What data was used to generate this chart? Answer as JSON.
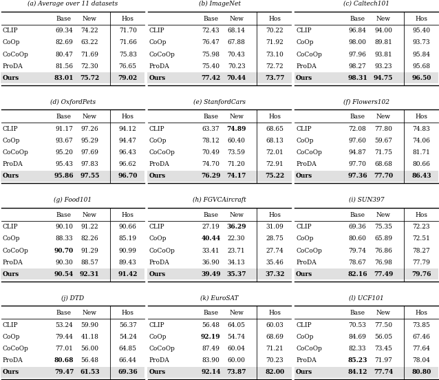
{
  "panels": [
    {
      "label": "(a) Average over 11 datasets",
      "methods": [
        "CLIP",
        "CoOp",
        "CoCoOp",
        "ProDA",
        "Ours"
      ],
      "base": [
        "69.34",
        "82.69",
        "80.47",
        "81.56",
        "83.01"
      ],
      "new": [
        "74.22",
        "63.22",
        "71.69",
        "72.30",
        "75.72"
      ],
      "hos": [
        "71.70",
        "71.66",
        "75.83",
        "76.65",
        "79.02"
      ],
      "bold_base": [
        4
      ],
      "bold_new": [
        4
      ],
      "bold_hos": [
        4
      ]
    },
    {
      "label": "(b) ImageNet",
      "methods": [
        "CLIP",
        "CoOp",
        "CoCoOp",
        "ProDA",
        "Ours"
      ],
      "base": [
        "72.43",
        "76.47",
        "75.98",
        "75.40",
        "77.42"
      ],
      "new": [
        "68.14",
        "67.88",
        "70.43",
        "70.23",
        "70.44"
      ],
      "hos": [
        "70.22",
        "71.92",
        "73.10",
        "72.72",
        "73.77"
      ],
      "bold_base": [
        4
      ],
      "bold_new": [
        4
      ],
      "bold_hos": [
        4
      ]
    },
    {
      "label": "(c) Caltech101",
      "methods": [
        "CLIP",
        "CoOp",
        "CoCoOp",
        "ProDA",
        "Ours"
      ],
      "base": [
        "96.84",
        "98.00",
        "97.96",
        "98.27",
        "98.31"
      ],
      "new": [
        "94.00",
        "89.81",
        "93.81",
        "93.23",
        "94.75"
      ],
      "hos": [
        "95.40",
        "93.73",
        "95.84",
        "95.68",
        "96.50"
      ],
      "bold_base": [
        4
      ],
      "bold_new": [
        4
      ],
      "bold_hos": [
        4
      ]
    },
    {
      "label": "(d) OxfordPets",
      "methods": [
        "CLIP",
        "CoOp",
        "CoCoOp",
        "ProDA",
        "Ours"
      ],
      "base": [
        "91.17",
        "93.67",
        "95.20",
        "95.43",
        "95.86"
      ],
      "new": [
        "97.26",
        "95.29",
        "97.69",
        "97.83",
        "97.55"
      ],
      "hos": [
        "94.12",
        "94.47",
        "96.43",
        "96.62",
        "96.70"
      ],
      "bold_base": [
        4
      ],
      "bold_new": [
        4
      ],
      "bold_hos": [
        4
      ]
    },
    {
      "label": "(e) StanfordCars",
      "methods": [
        "CLIP",
        "CoOp",
        "CoCoOp",
        "ProDA",
        "Ours"
      ],
      "base": [
        "63.37",
        "78.12",
        "70.49",
        "74.70",
        "76.29"
      ],
      "new": [
        "74.89",
        "60.40",
        "73.59",
        "71.20",
        "74.17"
      ],
      "hos": [
        "68.65",
        "68.13",
        "72.01",
        "72.91",
        "75.22"
      ],
      "bold_base": [
        4
      ],
      "bold_new": [
        0,
        4
      ],
      "bold_hos": [
        4
      ]
    },
    {
      "label": "(f) Flowers102",
      "methods": [
        "CLIP",
        "CoOp",
        "CoCoOp",
        "ProDA",
        "Ours"
      ],
      "base": [
        "72.08",
        "97.60",
        "94.87",
        "97.70",
        "97.36"
      ],
      "new": [
        "77.80",
        "59.67",
        "71.75",
        "68.68",
        "77.70"
      ],
      "hos": [
        "74.83",
        "74.06",
        "81.71",
        "80.66",
        "86.43"
      ],
      "bold_base": [
        4
      ],
      "bold_new": [
        4
      ],
      "bold_hos": [
        4
      ]
    },
    {
      "label": "(g) Food101",
      "methods": [
        "CLIP",
        "CoOp",
        "CoCoOp",
        "ProDA",
        "Ours"
      ],
      "base": [
        "90.10",
        "88.33",
        "90.70",
        "90.30",
        "90.54"
      ],
      "new": [
        "91.22",
        "82.26",
        "91.29",
        "88.57",
        "92.31"
      ],
      "hos": [
        "90.66",
        "85.19",
        "90.99",
        "89.43",
        "91.42"
      ],
      "bold_base": [
        2,
        4
      ],
      "bold_new": [
        4
      ],
      "bold_hos": [
        4
      ]
    },
    {
      "label": "(h) FGVCAircraft",
      "methods": [
        "CLIP",
        "CoOp",
        "CoCoOp",
        "ProDA",
        "Ours"
      ],
      "base": [
        "27.19",
        "40.44",
        "33.41",
        "36.90",
        "39.49"
      ],
      "new": [
        "36.29",
        "22.30",
        "23.71",
        "34.13",
        "35.37"
      ],
      "hos": [
        "31.09",
        "28.75",
        "27.74",
        "35.46",
        "37.32"
      ],
      "bold_base": [
        1,
        4
      ],
      "bold_new": [
        0,
        4
      ],
      "bold_hos": [
        4
      ]
    },
    {
      "label": "(i) SUN397",
      "methods": [
        "CLIP",
        "CoOp",
        "CoCoOp",
        "ProDA",
        "Ours"
      ],
      "base": [
        "69.36",
        "80.60",
        "79.74",
        "78.67",
        "82.16"
      ],
      "new": [
        "75.35",
        "65.89",
        "76.86",
        "76.98",
        "77.49"
      ],
      "hos": [
        "72.23",
        "72.51",
        "78.27",
        "77.79",
        "79.76"
      ],
      "bold_base": [
        4
      ],
      "bold_new": [
        4
      ],
      "bold_hos": [
        4
      ]
    },
    {
      "label": "(j) DTD",
      "methods": [
        "CLIP",
        "CoOp",
        "CoCoOp",
        "ProDA",
        "Ours"
      ],
      "base": [
        "53.24",
        "79.44",
        "77.01",
        "80.68",
        "79.47"
      ],
      "new": [
        "59.90",
        "41.18",
        "56.00",
        "56.48",
        "61.53"
      ],
      "hos": [
        "56.37",
        "54.24",
        "64.85",
        "66.44",
        "69.36"
      ],
      "bold_base": [
        3,
        4
      ],
      "bold_new": [
        4
      ],
      "bold_hos": [
        4
      ]
    },
    {
      "label": "(k) EuroSAT",
      "methods": [
        "CLIP",
        "CoOp",
        "CoCoOp",
        "ProDA",
        "Ours"
      ],
      "base": [
        "56.48",
        "92.19",
        "87.49",
        "83.90",
        "92.14"
      ],
      "new": [
        "64.05",
        "54.74",
        "60.04",
        "60.00",
        "73.87"
      ],
      "hos": [
        "60.03",
        "68.69",
        "71.21",
        "70.23",
        "82.00"
      ],
      "bold_base": [
        1,
        4
      ],
      "bold_new": [
        4
      ],
      "bold_hos": [
        4
      ]
    },
    {
      "label": "(l) UCF101",
      "methods": [
        "CLIP",
        "CoOp",
        "CoCoOp",
        "ProDA",
        "Ours"
      ],
      "base": [
        "70.53",
        "84.69",
        "82.33",
        "85.23",
        "84.12"
      ],
      "new": [
        "77.50",
        "56.05",
        "73.45",
        "71.97",
        "77.74"
      ],
      "hos": [
        "73.85",
        "67.46",
        "77.64",
        "78.04",
        "80.80"
      ],
      "bold_base": [
        3,
        4
      ],
      "bold_new": [
        4
      ],
      "bold_hos": [
        4
      ]
    }
  ],
  "background_color": "#ffffff",
  "ours_bg": "#e0e0e0"
}
